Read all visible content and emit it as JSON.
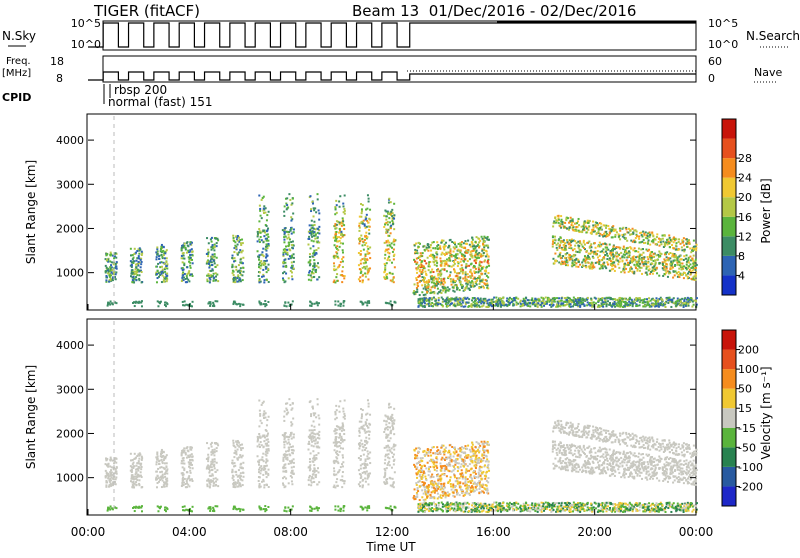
{
  "header": {
    "radar": "TIGER (fitACF)",
    "beam_range": "Beam 13  01/Dec/2016 - 02/Dec/2016"
  },
  "left_labels": {
    "nsky": "N.Sky",
    "freq": "Freq.",
    "freq_unit": "[MHz]",
    "cpid": "CPID"
  },
  "right_labels": {
    "nsearch": "N.Search",
    "nave": "Nave"
  },
  "cpid_labels": {
    "first": "rbsp 200",
    "second": "normal (fast) 151"
  },
  "colors": {
    "frame": "#000000",
    "nsearch_dotted": "#000000"
  },
  "chart_data": [
    {
      "type": "line",
      "panel": "noise",
      "ylabels_left": [
        "10^5",
        "10^0"
      ],
      "ylabels_right": [
        "10^5",
        "10^0"
      ],
      "x_hours": [
        0,
        24
      ],
      "pulse_hours_start": [
        0.1,
        1.1,
        2.1,
        3.1,
        4.1,
        5.1,
        6.1,
        7.1,
        8.1,
        9.1,
        10.1,
        11.1
      ],
      "pulse_width_hours": 0.6,
      "continuous_from_hour": 12.7
    },
    {
      "type": "line",
      "panel": "frequency",
      "ylim_left": [
        8,
        18
      ],
      "ylim_right": [
        0,
        60
      ],
      "yticks_left": [
        "18",
        "8"
      ],
      "yticks_right": [
        "60",
        "0"
      ]
    },
    {
      "type": "heatmap",
      "panel": "power",
      "ylabel": "Slant Range [km]",
      "ylim": [
        200,
        4500
      ],
      "yticks": [
        "1000",
        "2000",
        "3000",
        "4000"
      ],
      "colorbar_label": "Power [dB]",
      "colorbar_ticks": [
        "4",
        "8",
        "12",
        "16",
        "20",
        "24",
        "28"
      ],
      "colorbar_colors": [
        "#1432c8",
        "#2d64b4",
        "#3c8c64",
        "#5ab43c",
        "#b4c846",
        "#f0c832",
        "#f58c1e",
        "#e6501e",
        "#c8140a"
      ]
    },
    {
      "type": "heatmap",
      "panel": "velocity",
      "ylabel": "Slant Range [km]",
      "ylim": [
        200,
        4500
      ],
      "yticks": [
        "1000",
        "2000",
        "3000",
        "4000"
      ],
      "xticks": [
        "00:00",
        "04:00",
        "08:00",
        "12:00",
        "16:00",
        "20:00",
        "00:00"
      ],
      "xlabel": "Time UT",
      "colorbar_label": "Velocity [m s⁻¹]",
      "colorbar_ticks": [
        "200",
        "100",
        "50",
        "15",
        "-15",
        "-50",
        "-100",
        "-200"
      ],
      "colorbar_colors": [
        "#1e28c8",
        "#285aa0",
        "#288250",
        "#5ab43c",
        "#c8c8c0",
        "#f0c832",
        "#f58c1e",
        "#e6501e",
        "#c8140a"
      ]
    }
  ]
}
